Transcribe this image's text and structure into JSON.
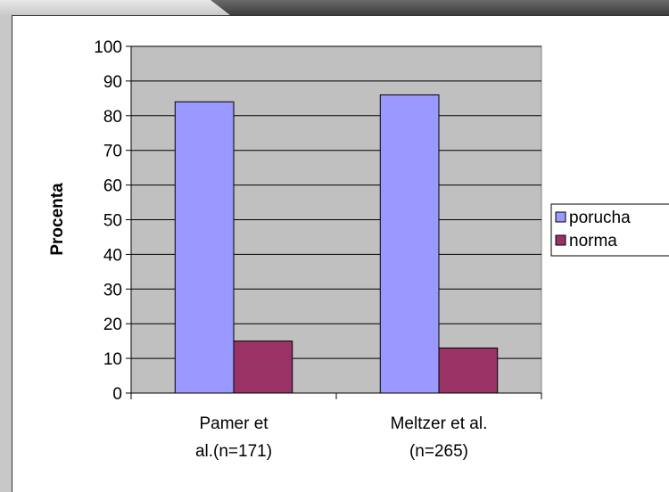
{
  "chart_data": {
    "type": "bar",
    "categories": [
      [
        "Pamer et",
        "al.(n=171)"
      ],
      [
        "Meltzer et al.",
        "(n=265)"
      ]
    ],
    "series": [
      {
        "name": "porucha",
        "values": [
          84,
          86
        ],
        "color": "#9999ff"
      },
      {
        "name": "norma",
        "values": [
          15,
          13
        ],
        "color": "#993366"
      }
    ],
    "ylabel": "Procenta",
    "xlabel": "",
    "ylim": [
      0,
      100
    ],
    "yticks": [
      0,
      10,
      20,
      30,
      40,
      50,
      60,
      70,
      80,
      90,
      100
    ],
    "plot_background": "#c0c0c0",
    "grid": true,
    "legend_position": "right"
  }
}
